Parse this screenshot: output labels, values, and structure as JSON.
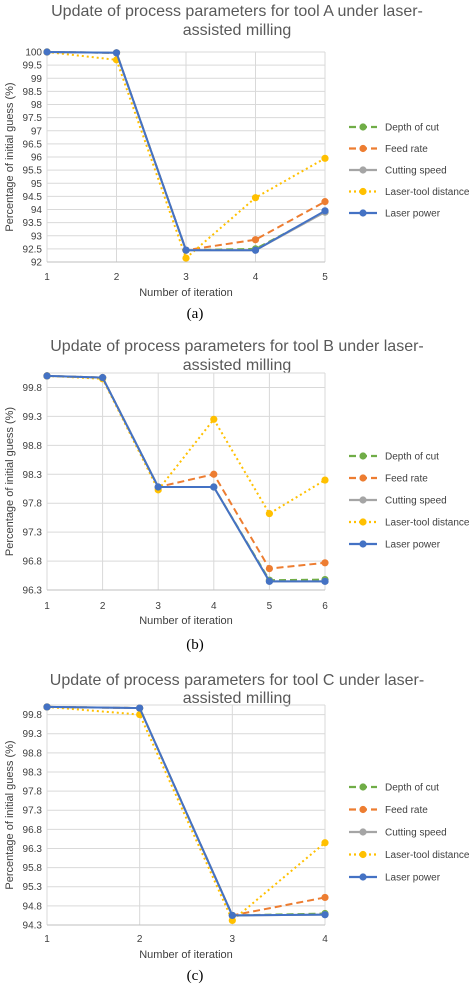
{
  "chart_data": [
    {
      "type": "line",
      "title": "Update of process parameters for tool A under laser-assisted milling",
      "title_lines": [
        "Update of process parameters for tool A under laser-",
        "assisted milling"
      ],
      "xlabel": "Number of iteration",
      "ylabel": "Percentage of initial guess (%)",
      "caption": "(a)",
      "x": [
        1,
        2,
        3,
        4,
        5
      ],
      "x_tick_labels": [
        "1",
        "2",
        "3",
        "4",
        "5"
      ],
      "ylim": [
        92,
        100
      ],
      "y_tick_labels": [
        "100",
        "99.5",
        "99",
        "98.5",
        "98",
        "97.5",
        "97",
        "96.5",
        "96",
        "95.5",
        "95",
        "94.5",
        "94",
        "93.5",
        "93",
        "92.5",
        "92"
      ],
      "grid": true,
      "legend_position": "right",
      "series": [
        {
          "name": "Depth of cut",
          "values": [
            100,
            99.97,
            92.45,
            92.5,
            93.9
          ],
          "color": "#70ad47",
          "dash": "dash"
        },
        {
          "name": "Feed rate",
          "values": [
            100,
            99.97,
            92.45,
            92.85,
            94.3
          ],
          "color": "#ed7d31",
          "dash": "dash"
        },
        {
          "name": "Cutting speed",
          "values": [
            100,
            99.97,
            92.45,
            92.45,
            93.9
          ],
          "color": "#a5a5a5",
          "dash": "solid"
        },
        {
          "name": "Laser-tool distance",
          "values": [
            100,
            99.7,
            92.15,
            94.45,
            95.95
          ],
          "color": "#ffc000",
          "dash": "dot"
        },
        {
          "name": "Laser power",
          "values": [
            100,
            99.97,
            92.45,
            92.45,
            93.95
          ],
          "color": "#4472c4",
          "dash": "solid"
        }
      ]
    },
    {
      "type": "line",
      "title": "Update of process parameters for tool B under laser-assisted milling",
      "title_lines": [
        "Update of process parameters for tool B under laser-",
        "assisted milling"
      ],
      "xlabel": "Number of iteration",
      "ylabel": "Percentage of initial guess (%)",
      "caption": "(b)",
      "x": [
        1,
        2,
        3,
        4,
        5,
        6
      ],
      "x_tick_labels": [
        "1",
        "2",
        "3",
        "4",
        "5",
        "6"
      ],
      "ylim": [
        96.3,
        100.05
      ],
      "y_tick_values": [
        99.8,
        99.3,
        98.8,
        98.3,
        97.8,
        97.3,
        96.8,
        96.3
      ],
      "y_tick_labels": [
        "99.8",
        "99.3",
        "98.8",
        "98.3",
        "97.8",
        "97.3",
        "96.8",
        "96.3"
      ],
      "grid": true,
      "legend_position": "right",
      "series": [
        {
          "name": "Depth of cut",
          "values": [
            100,
            99.97,
            98.08,
            98.08,
            96.47,
            96.48
          ],
          "color": "#70ad47",
          "dash": "dash"
        },
        {
          "name": "Feed rate",
          "values": [
            100,
            99.97,
            98.08,
            98.3,
            96.67,
            96.77
          ],
          "color": "#ed7d31",
          "dash": "dash"
        },
        {
          "name": "Cutting speed",
          "values": [
            100,
            99.97,
            98.08,
            98.08,
            96.45,
            96.45
          ],
          "color": "#a5a5a5",
          "dash": "solid"
        },
        {
          "name": "Laser-tool distance",
          "values": [
            100,
            99.95,
            98.03,
            99.25,
            97.62,
            98.2
          ],
          "color": "#ffc000",
          "dash": "dot"
        },
        {
          "name": "Laser power",
          "values": [
            100,
            99.97,
            98.08,
            98.08,
            96.45,
            96.45
          ],
          "color": "#4472c4",
          "dash": "solid"
        }
      ]
    },
    {
      "type": "line",
      "title": "Update of process parameters for tool C under laser-assisted milling",
      "title_lines": [
        "Update of process parameters for tool C under laser-",
        "assisted milling"
      ],
      "xlabel": "Number of iteration",
      "ylabel": "Percentage of initial guess (%)",
      "caption": "(c)",
      "x": [
        1,
        2,
        3,
        4
      ],
      "x_tick_labels": [
        "1",
        "2",
        "3",
        "4"
      ],
      "ylim": [
        94.3,
        100.05
      ],
      "y_tick_values": [
        99.8,
        99.3,
        98.8,
        98.3,
        97.8,
        97.3,
        96.8,
        96.3,
        95.8,
        95.3,
        94.8,
        94.3
      ],
      "y_tick_labels": [
        "99.8",
        "99.3",
        "98.8",
        "98.3",
        "97.8",
        "97.3",
        "96.8",
        "96.3",
        "95.8",
        "95.3",
        "94.8",
        "94.3"
      ],
      "grid": true,
      "legend_position": "right",
      "series": [
        {
          "name": "Depth of cut",
          "values": [
            100,
            99.97,
            94.55,
            94.6
          ],
          "color": "#70ad47",
          "dash": "dash"
        },
        {
          "name": "Feed rate",
          "values": [
            100,
            99.97,
            94.55,
            95.02
          ],
          "color": "#ed7d31",
          "dash": "dash"
        },
        {
          "name": "Cutting speed",
          "values": [
            100,
            99.97,
            94.55,
            94.57
          ],
          "color": "#a5a5a5",
          "dash": "solid"
        },
        {
          "name": "Laser-tool distance",
          "values": [
            100,
            99.8,
            94.42,
            96.45
          ],
          "color": "#ffc000",
          "dash": "dot"
        },
        {
          "name": "Laser power",
          "values": [
            100,
            99.97,
            94.55,
            94.57
          ],
          "color": "#4472c4",
          "dash": "solid"
        }
      ]
    }
  ]
}
